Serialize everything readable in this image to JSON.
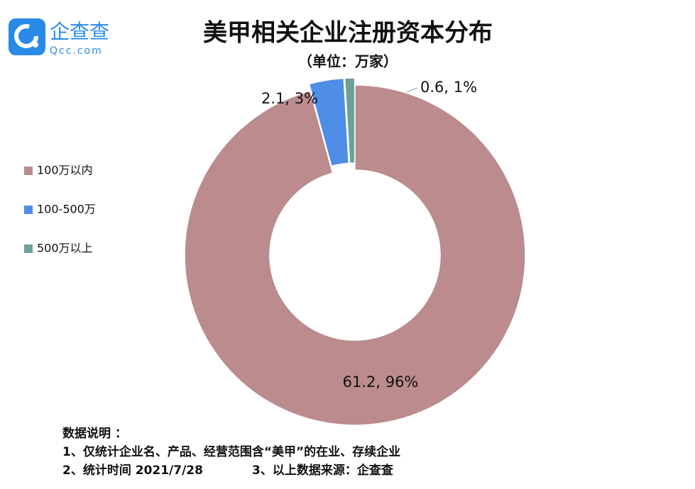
{
  "chart_data": {
    "type": "donut",
    "title": "美甲相关企业注册资本分布",
    "subtitle": "（单位：万家）",
    "categories": [
      "100万以内",
      "100-500万",
      "500万以上"
    ],
    "values": [
      61.2,
      2.1,
      0.6
    ],
    "value_labels": [
      "61.2, 96%",
      "2.1, 3%",
      "0.6, 1%"
    ],
    "colors": [
      "#bb8b8d",
      "#4f8ee6",
      "#6e9f99"
    ],
    "legend": "left"
  },
  "logo": {
    "name": "企查查",
    "domain": "Qcc.com"
  },
  "notes": {
    "heading": "数据说明 ：",
    "items": [
      "1、仅统计企业名、产品、经营范围含“美甲”的在业、存续企业",
      "2、统计时间 2021/7/28",
      "3、以上数据来源：企查查"
    ]
  }
}
